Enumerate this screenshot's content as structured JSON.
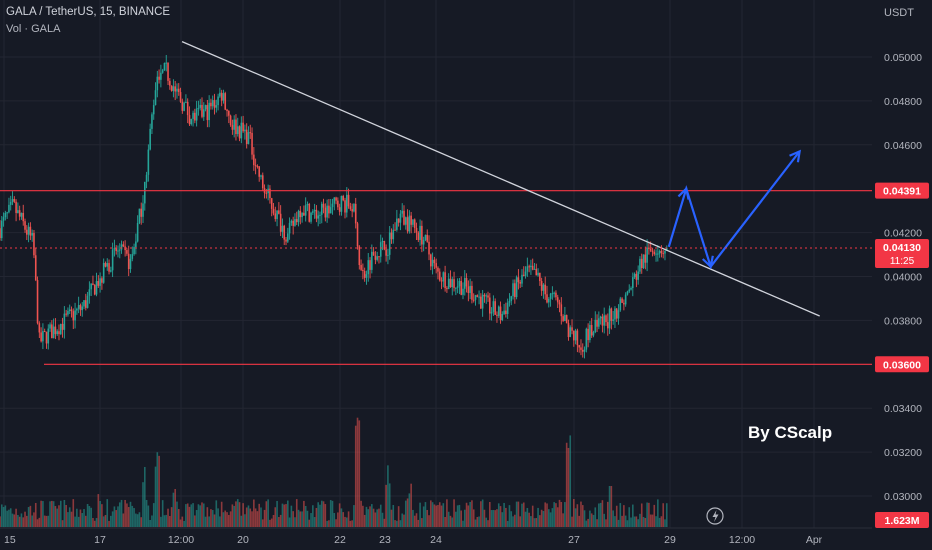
{
  "header": {
    "symbol_line": "GALA / TetherUS, 15, BINANCE",
    "volume_line": "Vol · GALA"
  },
  "watermark": "By CScalp",
  "colors": {
    "background": "#161a25",
    "grid": "#232632",
    "up": "#26a69a",
    "down": "#ef5350",
    "level_line": "#f23645",
    "trendline": "#d1d4dc",
    "projection": "#2962ff",
    "text": "#b2b5be",
    "price_badge": "#f23645"
  },
  "chart_data": {
    "type": "candlestick",
    "currency": "USDT",
    "y_ticks": [
      "0.05000",
      "0.04800",
      "0.04600",
      "0.04200",
      "0.04000",
      "0.03800",
      "0.03400",
      "0.03200",
      "0.03000"
    ],
    "ylim": [
      0.0288,
      0.052
    ],
    "x_ticks": [
      "15",
      "17",
      "12:00",
      "20",
      "22",
      "23",
      "24",
      "27",
      "29",
      "12:00",
      "Apr"
    ],
    "levels": [
      {
        "name": "resistance",
        "value": 0.04391,
        "label": "0.04391"
      },
      {
        "name": "support",
        "value": 0.036,
        "label": "0.03600"
      }
    ],
    "current_price": {
      "value": 0.0413,
      "label": "0.04130",
      "countdown": "11:25"
    },
    "volume_badge": "1.623M",
    "trendline": {
      "from": {
        "t": 0.195,
        "price": 0.0507
      },
      "to": {
        "t": 0.94,
        "price": 0.0382
      }
    },
    "projection_path": [
      {
        "t": 0.767,
        "price": 0.04135
      },
      {
        "t": 0.787,
        "price": 0.044
      },
      {
        "t": 0.815,
        "price": 0.04045
      },
      {
        "t": 0.917,
        "price": 0.0457
      }
    ],
    "price_path": [
      [
        0.0,
        0.0422
      ],
      [
        0.015,
        0.0432
      ],
      [
        0.025,
        0.0425
      ],
      [
        0.038,
        0.0415
      ],
      [
        0.045,
        0.037
      ],
      [
        0.055,
        0.0374
      ],
      [
        0.075,
        0.038
      ],
      [
        0.095,
        0.0386
      ],
      [
        0.115,
        0.04
      ],
      [
        0.135,
        0.0412
      ],
      [
        0.15,
        0.0406
      ],
      [
        0.165,
        0.0438
      ],
      [
        0.178,
        0.0487
      ],
      [
        0.19,
        0.0494
      ],
      [
        0.205,
        0.0482
      ],
      [
        0.22,
        0.0472
      ],
      [
        0.24,
        0.0476
      ],
      [
        0.255,
        0.0484
      ],
      [
        0.265,
        0.047
      ],
      [
        0.285,
        0.0464
      ],
      [
        0.3,
        0.0442
      ],
      [
        0.315,
        0.043
      ],
      [
        0.33,
        0.0418
      ],
      [
        0.345,
        0.0432
      ],
      [
        0.36,
        0.0428
      ],
      [
        0.375,
        0.043
      ],
      [
        0.39,
        0.0434
      ],
      [
        0.405,
        0.0432
      ],
      [
        0.415,
        0.04
      ],
      [
        0.43,
        0.0412
      ],
      [
        0.445,
        0.0414
      ],
      [
        0.458,
        0.0428
      ],
      [
        0.47,
        0.0424
      ],
      [
        0.485,
        0.0418
      ],
      [
        0.5,
        0.0402
      ],
      [
        0.515,
        0.0398
      ],
      [
        0.53,
        0.0396
      ],
      [
        0.545,
        0.0392
      ],
      [
        0.56,
        0.0386
      ],
      [
        0.575,
        0.0382
      ],
      [
        0.59,
        0.0394
      ],
      [
        0.605,
        0.0402
      ],
      [
        0.615,
        0.04
      ],
      [
        0.625,
        0.0392
      ],
      [
        0.64,
        0.0388
      ],
      [
        0.655,
        0.0374
      ],
      [
        0.665,
        0.0368
      ],
      [
        0.675,
        0.0374
      ],
      [
        0.69,
        0.0378
      ],
      [
        0.705,
        0.0384
      ],
      [
        0.72,
        0.0392
      ],
      [
        0.735,
        0.0406
      ],
      [
        0.75,
        0.0414
      ],
      [
        0.765,
        0.0412
      ]
    ]
  }
}
